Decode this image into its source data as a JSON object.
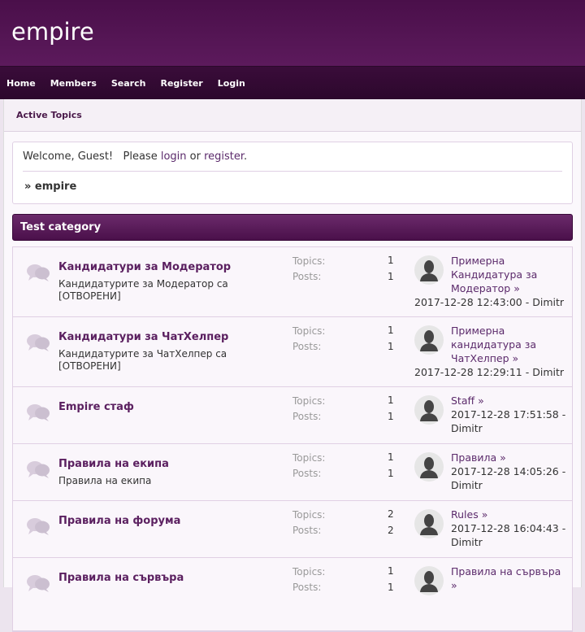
{
  "header": {
    "title": "empire"
  },
  "nav": [
    "Home",
    "Members",
    "Search",
    "Register",
    "Login"
  ],
  "subnav": {
    "active_topics": "Active Topics"
  },
  "welcome": {
    "text1": "Welcome, Guest!   Please ",
    "login": "login",
    "or": " or ",
    "register": "register",
    "dot": ".",
    "crumb": "» empire"
  },
  "category": "Test category",
  "labels": {
    "topics": "Topics:",
    "posts": "Posts:"
  },
  "boards": [
    {
      "name": "Кандидатури за Модератор",
      "desc": "Кандидатурите за Модератор са [ОТВОРЕНИ]",
      "topics": "1",
      "posts": "1",
      "last_title": "Примерна Кандидатура за Модератор »",
      "last_date": "2017-12-28 12:43:00 - Dimitr"
    },
    {
      "name": "Кандидатури за ЧатХелпер",
      "desc": "Кандидатурите за ЧатХелпер са [ОТВОРЕНИ]",
      "topics": "1",
      "posts": "1",
      "last_title": "Примерна кандидатура за ЧатХелпер »",
      "last_date": "2017-12-28 12:29:11 - Dimitr"
    },
    {
      "name": "Empire стаф",
      "desc": "",
      "topics": "1",
      "posts": "1",
      "last_title": "Staff »",
      "last_date": "2017-12-28 17:51:58 - Dimitr"
    },
    {
      "name": "Правила на екипа",
      "desc": "Правила на екипа",
      "topics": "1",
      "posts": "1",
      "last_title": "Правила »",
      "last_date": "2017-12-28 14:05:26 - Dimitr"
    },
    {
      "name": "Правила на форума",
      "desc": "",
      "topics": "2",
      "posts": "2",
      "last_title": "Rules »",
      "last_date": "2017-12-28 16:04:43 - Dimitr"
    },
    {
      "name": "Правила на сървъра",
      "desc": "",
      "topics": "1",
      "posts": "1",
      "last_title": "Правила на сървъра »",
      "last_date": ""
    }
  ]
}
